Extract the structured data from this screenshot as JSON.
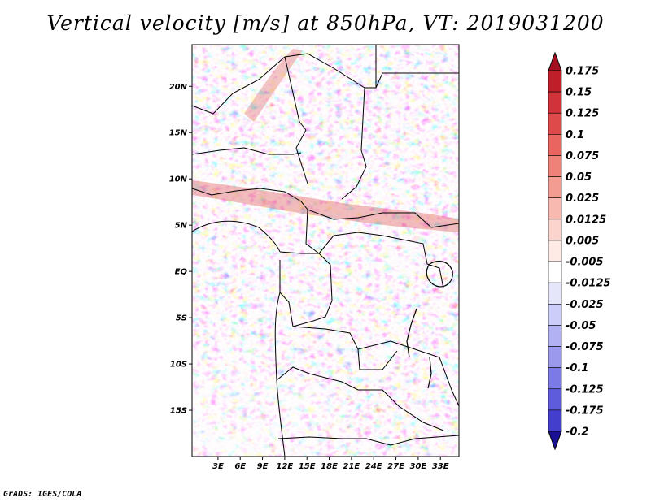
{
  "title": "Vertical velocity [m/s] at 850hPa, VT: 2019031200",
  "credit": "GrADS: IGES/COLA",
  "map": {
    "lon_range": [
      -0.5,
      35.5
    ],
    "lat_range": [
      -20,
      24.5
    ],
    "lat_ticks": [
      {
        "value": 20,
        "label": "20N"
      },
      {
        "value": 15,
        "label": "15N"
      },
      {
        "value": 10,
        "label": "10N"
      },
      {
        "value": 5,
        "label": "5N"
      },
      {
        "value": 0,
        "label": "EQ"
      },
      {
        "value": -5,
        "label": "5S"
      },
      {
        "value": -10,
        "label": "10S"
      },
      {
        "value": -15,
        "label": "15S"
      }
    ],
    "lon_ticks": [
      {
        "value": 3,
        "label": "3E"
      },
      {
        "value": 6,
        "label": "6E"
      },
      {
        "value": 9,
        "label": "9E"
      },
      {
        "value": 12,
        "label": "12E"
      },
      {
        "value": 15,
        "label": "15E"
      },
      {
        "value": 18,
        "label": "18E"
      },
      {
        "value": 21,
        "label": "21E"
      },
      {
        "value": 24,
        "label": "24E"
      },
      {
        "value": 27,
        "label": "27E"
      },
      {
        "value": 30,
        "label": "30E"
      },
      {
        "value": 33,
        "label": "33E"
      }
    ]
  },
  "colorbar": {
    "levels": [
      {
        "label": "0.175",
        "color": "#c01e28"
      },
      {
        "label": "0.15",
        "color": "#d23239"
      },
      {
        "label": "0.125",
        "color": "#de4a4a"
      },
      {
        "label": "0.1",
        "color": "#e8665f"
      },
      {
        "label": "0.075",
        "color": "#ee8278"
      },
      {
        "label": "0.05",
        "color": "#f39d92"
      },
      {
        "label": "0.025",
        "color": "#f8b9b0"
      },
      {
        "label": "0.0125",
        "color": "#fbd4cd"
      },
      {
        "label": "0.005",
        "color": "#feebe6"
      },
      {
        "label": "-0.005",
        "color": "#ffffff"
      },
      {
        "label": "-0.0125",
        "color": "#e6e6fb"
      },
      {
        "label": "-0.025",
        "color": "#cccdf8"
      },
      {
        "label": "-0.05",
        "color": "#b1b1f3"
      },
      {
        "label": "-0.075",
        "color": "#9a99ee"
      },
      {
        "label": "-0.1",
        "color": "#7c7be6"
      },
      {
        "label": "-0.125",
        "color": "#5f5cdc"
      },
      {
        "label": "-0.175",
        "color": "#433fcc"
      },
      {
        "label": "-0.2",
        "color": "#2a22b2"
      }
    ],
    "top_arrow_color": "#a41020",
    "bottom_arrow_color": "#1a1096"
  }
}
